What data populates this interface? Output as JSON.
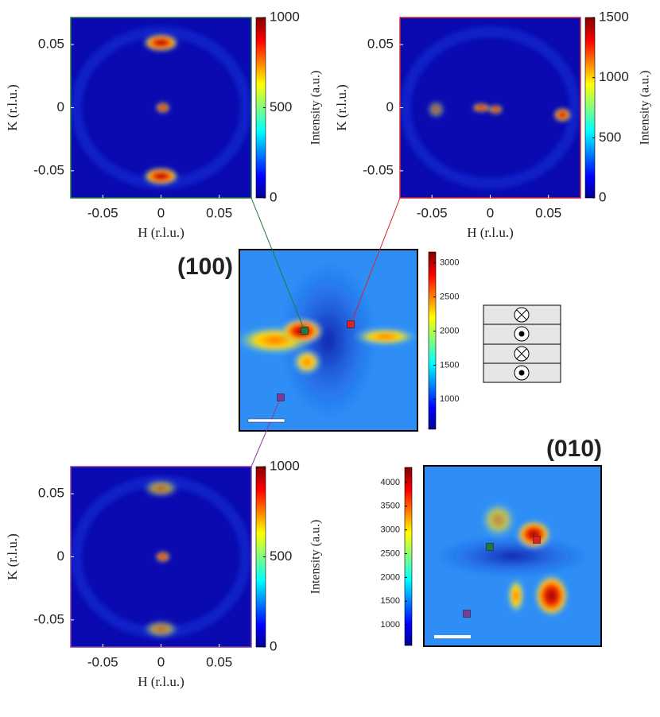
{
  "chart_data": [
    {
      "type": "heatmap",
      "frame_color": "#1f7a3a",
      "xlabel": "H (r.l.u.)",
      "ylabel": "K (r.l.u.)",
      "colorbar_label": "Intensity (a.u.)",
      "xlim": [
        -0.0775,
        0.0775
      ],
      "xticks": [
        -0.05,
        0,
        0.05
      ],
      "ylim": [
        -0.0715,
        0.0715
      ],
      "yticks": [
        -0.05,
        0,
        0.05
      ],
      "clim": [
        0,
        1000
      ],
      "cticks": [
        0,
        500,
        1000
      ]
    },
    {
      "type": "heatmap",
      "frame_color": "#d62728",
      "xlabel": "H (r.l.u.)",
      "ylabel": "K (r.l.u.)",
      "colorbar_label": "Intensity (a.u.)",
      "xlim": [
        -0.0775,
        0.0775
      ],
      "xticks": [
        -0.05,
        0,
        0.05
      ],
      "ylim": [
        -0.0715,
        0.0715
      ],
      "yticks": [
        -0.05,
        0,
        0.05
      ],
      "clim": [
        0,
        1500
      ],
      "cticks": [
        0,
        500,
        1000,
        1500
      ]
    },
    {
      "type": "image",
      "title": "(100)",
      "clim": [
        560,
        3160
      ],
      "cticks": [
        1000,
        1500,
        2000,
        2500,
        3000
      ]
    },
    {
      "type": "heatmap",
      "frame_color": "#8e3c9c",
      "xlabel": "H (r.l.u.)",
      "ylabel": "K (r.l.u.)",
      "colorbar_label": "Intensity (a.u.)",
      "xlim": [
        -0.0775,
        0.0775
      ],
      "xticks": [
        -0.05,
        0,
        0.05
      ],
      "ylim": [
        -0.0715,
        0.0715
      ],
      "yticks": [
        -0.05,
        0,
        0.05
      ],
      "clim": [
        0,
        1000
      ],
      "cticks": [
        0,
        500,
        1000
      ]
    },
    {
      "type": "image",
      "title": "(010)",
      "clim": [
        567,
        4317
      ],
      "cticks": [
        1000,
        1500,
        2000,
        2500,
        3000,
        3500,
        4000
      ]
    }
  ]
}
